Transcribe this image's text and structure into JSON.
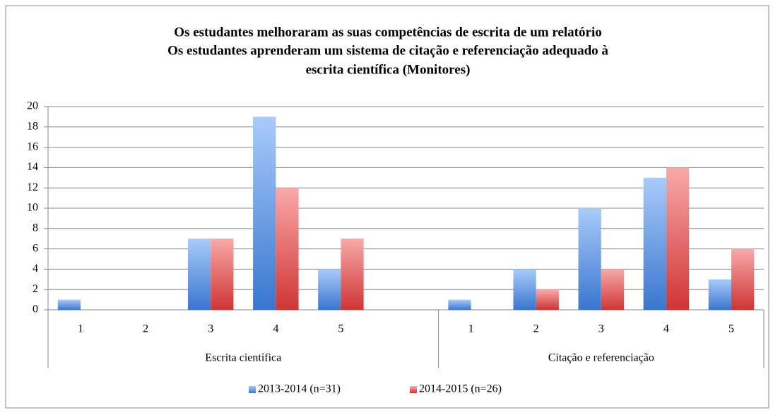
{
  "chart_data": {
    "type": "bar",
    "title": [
      "Os estudantes melhoraram  as  suas competências de escrita de um relatório",
      "Os estudantes aprenderam um sistema de citação e referenciação adequado à",
      "escrita científica (Monitores)"
    ],
    "groups": [
      {
        "name": "Escrita científica",
        "categories": [
          "1",
          "2",
          "3",
          "4",
          "5",
          null
        ]
      },
      {
        "name": "Citação e referenciação",
        "categories": [
          "1",
          "2",
          "3",
          "4",
          "5"
        ]
      }
    ],
    "series": [
      {
        "name": "2013-2014 (n=31)",
        "color": "#4a86d8",
        "values": [
          1,
          0,
          7,
          19,
          4,
          null,
          1,
          4,
          10,
          13,
          3
        ]
      },
      {
        "name": "2014-2015 (n=26)",
        "color": "#d84a4a",
        "values": [
          0,
          0,
          7,
          12,
          7,
          null,
          0,
          2,
          4,
          14,
          6
        ]
      }
    ],
    "ylim": [
      0,
      20
    ],
    "yticks": [
      0,
      2,
      4,
      6,
      8,
      10,
      12,
      14,
      16,
      18,
      20
    ],
    "grid": true,
    "legend": "bottom"
  }
}
